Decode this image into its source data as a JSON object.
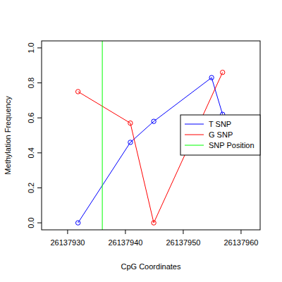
{
  "chart_data": {
    "type": "line",
    "x_label": "CpG Coordinates",
    "y_label": "Methylation Frequency",
    "xlim": [
      26137925.5,
      26137963.3
    ],
    "ylim": [
      -0.04,
      1.04
    ],
    "xticks": [
      26137930,
      26137940,
      26137950,
      26137960
    ],
    "yticks": [
      {
        "value": 0,
        "label": "0.0"
      },
      {
        "value": 0.2,
        "label": "0.2"
      },
      {
        "value": 0.4,
        "label": "0.4"
      },
      {
        "value": 0.6,
        "label": "0.6"
      },
      {
        "value": 0.8,
        "label": "0.8"
      },
      {
        "value": 1,
        "label": "1.0"
      }
    ],
    "legend": "right",
    "series": [
      {
        "name": "T SNP",
        "color": "#0000ff",
        "marker": "circle",
        "x": [
          26137931.8,
          26137940.85,
          26137944.9,
          26137954.9,
          26137956.8
        ],
        "values": [
          0,
          0.46,
          0.58,
          0.83,
          0.62
        ]
      },
      {
        "name": "G SNP",
        "color": "#ff0000",
        "marker": "circle",
        "x": [
          26137931.8,
          26137940.85,
          26137944.9,
          26137956.8
        ],
        "values": [
          0.75,
          0.57,
          0,
          0.86
        ]
      },
      {
        "name": "SNP Position",
        "color": "#00ff00",
        "type": "vline",
        "x": [
          26137936
        ]
      }
    ]
  }
}
